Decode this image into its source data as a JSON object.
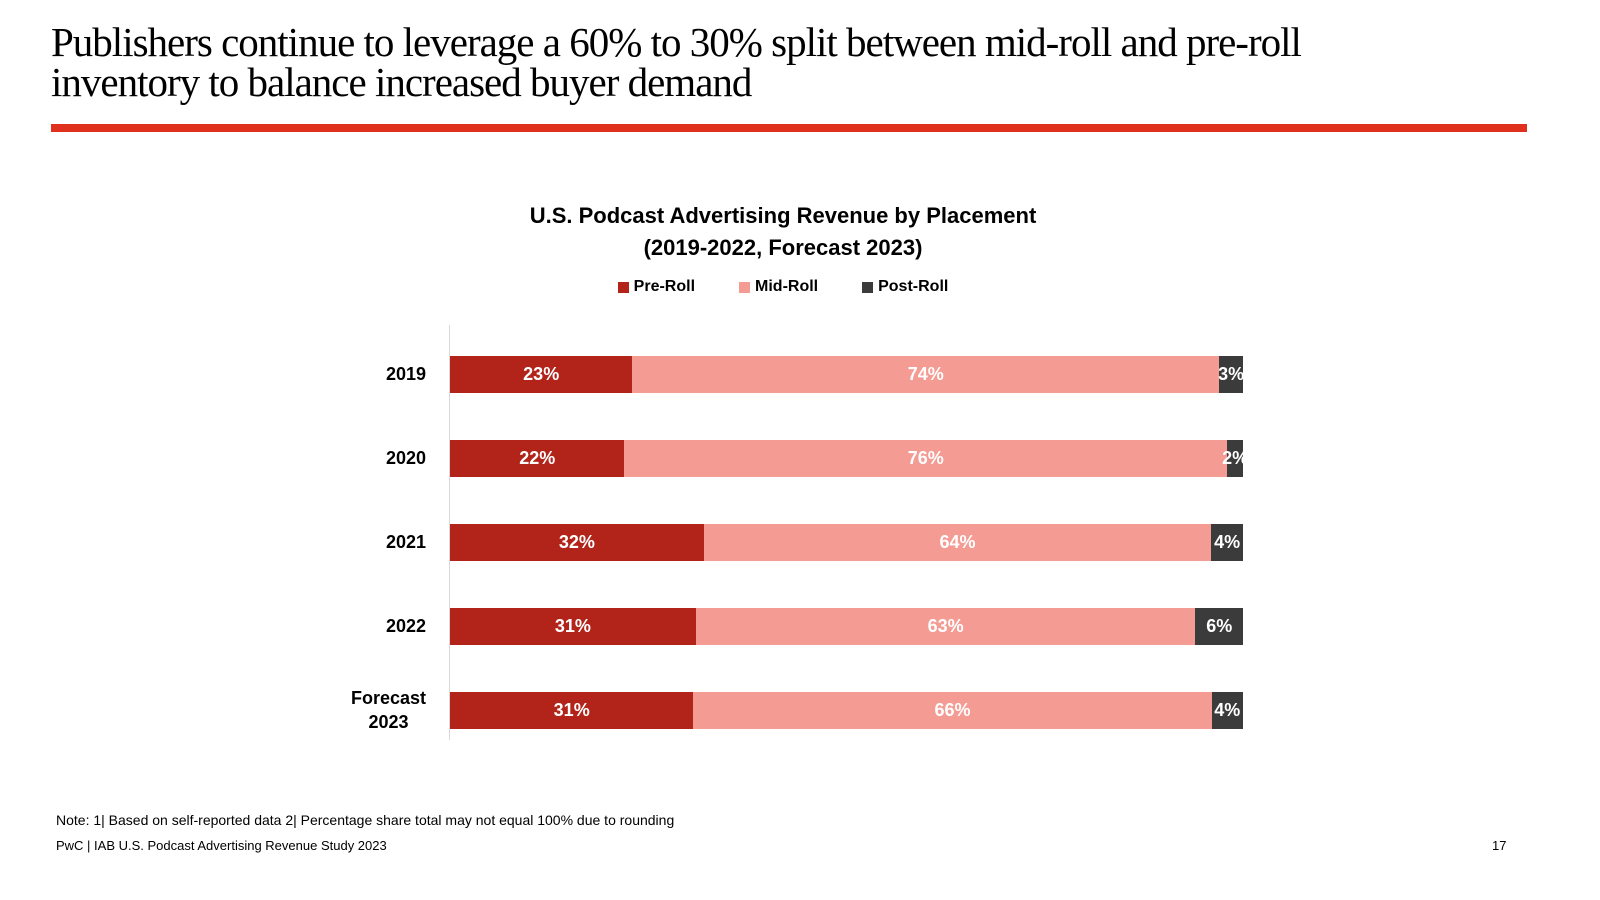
{
  "header": {
    "title_line1": "Publishers continue to leverage a 60% to 30% split between mid-roll and pre-roll",
    "title_line2": "inventory to balance increased buyer demand"
  },
  "colors": {
    "accent_rule": "#E0301E",
    "pre_roll": "#B2231A",
    "mid_roll": "#F49B94",
    "post_roll": "#3B3B3B",
    "axis_line": "#D9D9D9"
  },
  "chart_data": {
    "type": "bar",
    "orientation": "horizontal",
    "stacked": true,
    "title": "U.S. Podcast Advertising Revenue by Placement",
    "subtitle": "(2019-2022, Forecast 2023)",
    "legend_position": "top",
    "grid": false,
    "value_suffix": "%",
    "xlim": [
      0,
      100
    ],
    "categories": [
      "2019",
      "2020",
      "2021",
      "2022",
      "Forecast\n2023"
    ],
    "series": [
      {
        "name": "Pre-Roll",
        "color": "#B2231A",
        "values": [
          23,
          22,
          32,
          31,
          31
        ]
      },
      {
        "name": "Mid-Roll",
        "color": "#F49B94",
        "values": [
          74,
          76,
          64,
          63,
          66
        ]
      },
      {
        "name": "Post-Roll",
        "color": "#3B3B3B",
        "values": [
          3,
          2,
          4,
          6,
          4
        ]
      }
    ],
    "data_labels": "inside, white bold, e.g. 23%"
  },
  "footer": {
    "note": "Note: 1| Based on self-reported data 2| Percentage share total may not equal 100% due to rounding",
    "source": "PwC | IAB U.S. Podcast Advertising Revenue Study 2023",
    "page_number": "17"
  }
}
